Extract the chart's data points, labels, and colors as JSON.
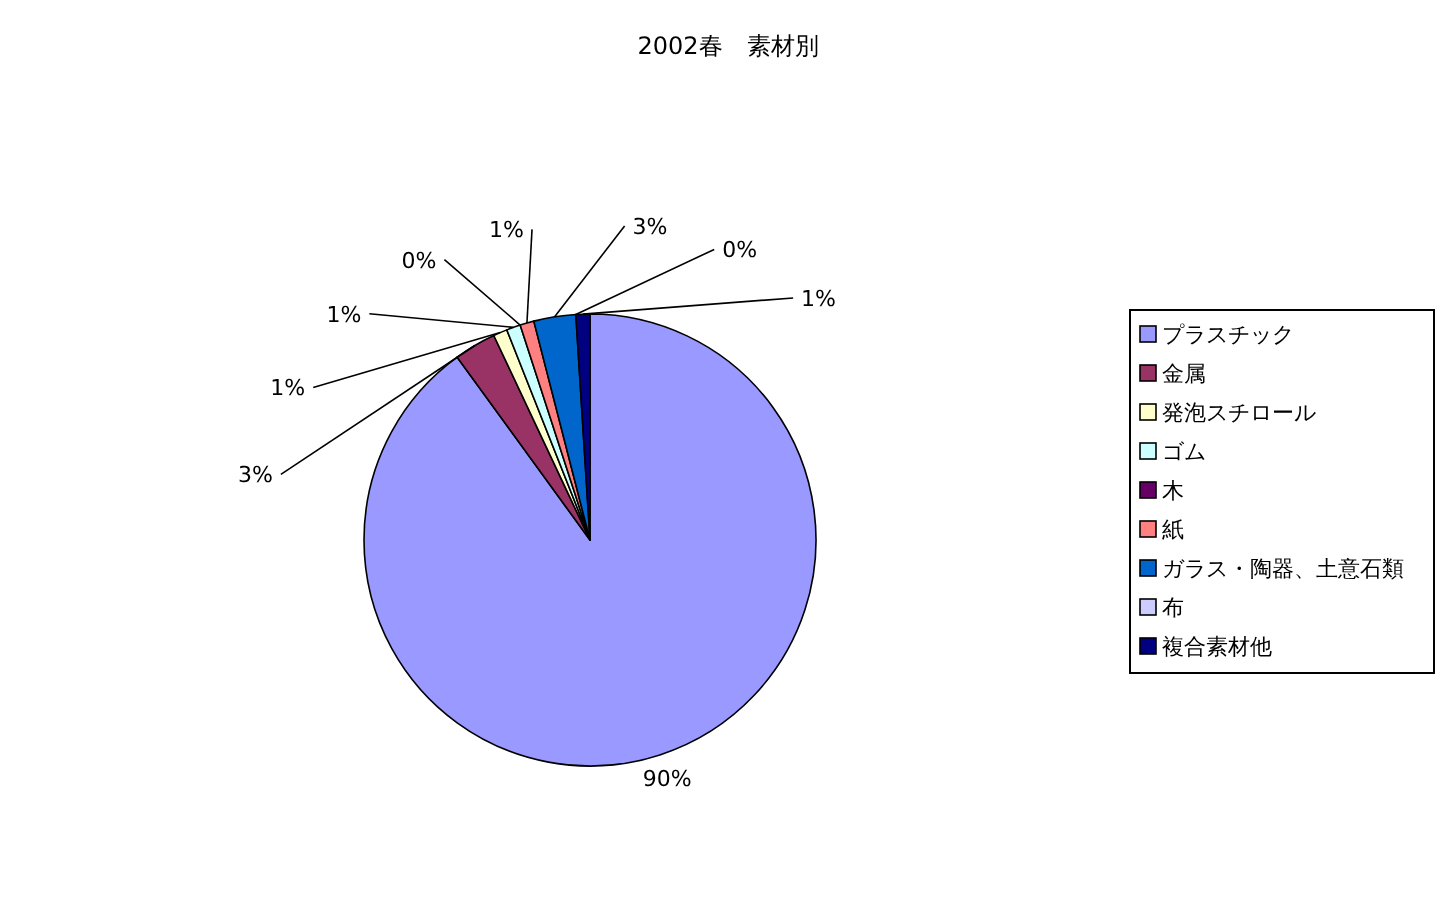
{
  "chart_data": {
    "type": "pie",
    "title": "2002春　素材別",
    "categories": [
      "プラスチック",
      "金属",
      "発泡スチロール",
      "ゴム",
      "木",
      "紙",
      "ガラス・陶器、土意石類",
      "布",
      "複合素材他"
    ],
    "values": [
      90,
      3,
      1,
      1,
      0,
      1,
      3,
      0,
      1
    ],
    "colors": [
      "#9999ff",
      "#993366",
      "#ffffcc",
      "#ccffff",
      "#660066",
      "#ff8080",
      "#0066cc",
      "#ccccff",
      "#000080"
    ],
    "value_labels": [
      "90%",
      "3%",
      "1%",
      "1%",
      "0%",
      "1%",
      "3%",
      "0%",
      "1%"
    ],
    "legend": "right"
  }
}
